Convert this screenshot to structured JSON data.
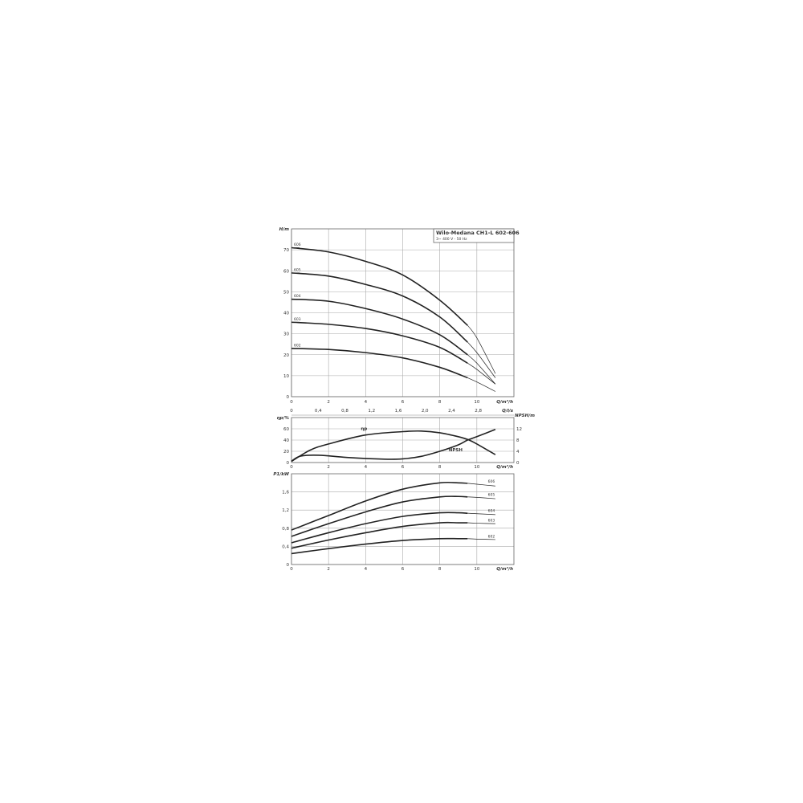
{
  "chart_data": [
    {
      "type": "line",
      "title": "Wilo-Medana CH1-L 602-606",
      "subtitle": "3~ 400 V - 50 Hz",
      "xlabel": "Q/m³/h",
      "ylabel": "H/m",
      "secondary_xlabel": "Q/l/s",
      "secondary_xticks": [
        "0",
        "0,4",
        "0,8",
        "1,2",
        "1,6",
        "2,0",
        "2,4",
        "2,8"
      ],
      "xticks": [
        "0",
        "2",
        "4",
        "6",
        "8",
        "10"
      ],
      "yticks": [
        "0",
        "10",
        "20",
        "30",
        "40",
        "50",
        "60",
        "70"
      ],
      "xlim": [
        0,
        12
      ],
      "ylim": [
        0,
        80
      ],
      "grid": true,
      "series": [
        {
          "name": "606",
          "x": [
            0,
            2,
            4,
            6,
            8,
            9.5,
            10,
            11
          ],
          "y": [
            71,
            69,
            64.5,
            58,
            46,
            34,
            28,
            11
          ]
        },
        {
          "name": "605",
          "x": [
            0,
            2,
            4,
            6,
            8,
            9.5,
            10,
            11
          ],
          "y": [
            59,
            57.5,
            53.5,
            48,
            38,
            26,
            21,
            9
          ]
        },
        {
          "name": "604",
          "x": [
            0,
            2,
            4,
            6,
            8,
            9.5,
            10,
            11
          ],
          "y": [
            46.5,
            45.5,
            42,
            37,
            29.5,
            20,
            16,
            6
          ]
        },
        {
          "name": "603",
          "x": [
            0,
            2,
            4,
            6,
            8,
            9.5,
            10,
            11
          ],
          "y": [
            35.5,
            34.5,
            32.5,
            29,
            23.5,
            16,
            13,
            6
          ]
        },
        {
          "name": "602",
          "x": [
            0,
            2,
            4,
            6,
            8,
            9.5,
            10,
            11
          ],
          "y": [
            23,
            22.5,
            21,
            18.5,
            14,
            9,
            7,
            2.5
          ]
        }
      ]
    },
    {
      "type": "line",
      "xlabel": "Q/m³/h",
      "ylabel": "ηp/%",
      "ylabel_right": "NPSH/m",
      "xticks": [
        "0",
        "2",
        "4",
        "6",
        "8",
        "10"
      ],
      "yticks": [
        "0",
        "20",
        "40",
        "60"
      ],
      "yticks_right": [
        "0",
        "4",
        "8",
        "12"
      ],
      "xlim": [
        0,
        12
      ],
      "ylim": [
        0,
        80
      ],
      "ylim_right": [
        0,
        16
      ],
      "grid": true,
      "series": [
        {
          "name": "ηp",
          "axis": "left",
          "x": [
            0,
            1,
            2,
            4,
            6,
            7,
            8,
            9,
            9.5,
            10,
            11
          ],
          "y": [
            2,
            22,
            33,
            49,
            55,
            56,
            53,
            46,
            41,
            33,
            14
          ]
        },
        {
          "name": "NPSH",
          "axis": "right",
          "x": [
            0,
            0.5,
            1.5,
            3,
            5,
            6,
            7,
            8,
            9,
            9.5,
            10,
            11
          ],
          "y": [
            0.5,
            2.3,
            2.6,
            1.8,
            1.2,
            1.3,
            2.2,
            4,
            6.3,
            8,
            9.2,
            11.8
          ]
        }
      ]
    },
    {
      "type": "line",
      "xlabel": "Q/m³/h",
      "ylabel": "P1/kW",
      "xticks": [
        "0",
        "2",
        "4",
        "6",
        "8",
        "10"
      ],
      "yticks": [
        "0",
        "0,4",
        "0,8",
        "1,2",
        "1,6"
      ],
      "xlim": [
        0,
        12
      ],
      "ylim": [
        0,
        2.0
      ],
      "grid": true,
      "series": [
        {
          "name": "606",
          "x": [
            0,
            2,
            4,
            6,
            8,
            9,
            9.5,
            10,
            11
          ],
          "y": [
            0.76,
            1.08,
            1.4,
            1.66,
            1.8,
            1.8,
            1.79,
            1.77,
            1.73
          ]
        },
        {
          "name": "605",
          "x": [
            0,
            2,
            4,
            6,
            8,
            9,
            9.5,
            10,
            11
          ],
          "y": [
            0.62,
            0.9,
            1.16,
            1.38,
            1.49,
            1.5,
            1.49,
            1.48,
            1.45
          ]
        },
        {
          "name": "604",
          "x": [
            0,
            2,
            4,
            6,
            8,
            9,
            9.5,
            10,
            11
          ],
          "y": [
            0.48,
            0.7,
            0.9,
            1.06,
            1.14,
            1.14,
            1.13,
            1.12,
            1.1
          ]
        },
        {
          "name": "603",
          "x": [
            0,
            2,
            4,
            6,
            8,
            9,
            9.5,
            10,
            11
          ],
          "y": [
            0.36,
            0.54,
            0.7,
            0.84,
            0.92,
            0.92,
            0.92,
            0.91,
            0.9
          ]
        },
        {
          "name": "602",
          "x": [
            0,
            2,
            4,
            6,
            8,
            9,
            9.5,
            10,
            11
          ],
          "y": [
            0.24,
            0.35,
            0.45,
            0.53,
            0.57,
            0.57,
            0.57,
            0.56,
            0.55
          ]
        }
      ]
    }
  ]
}
